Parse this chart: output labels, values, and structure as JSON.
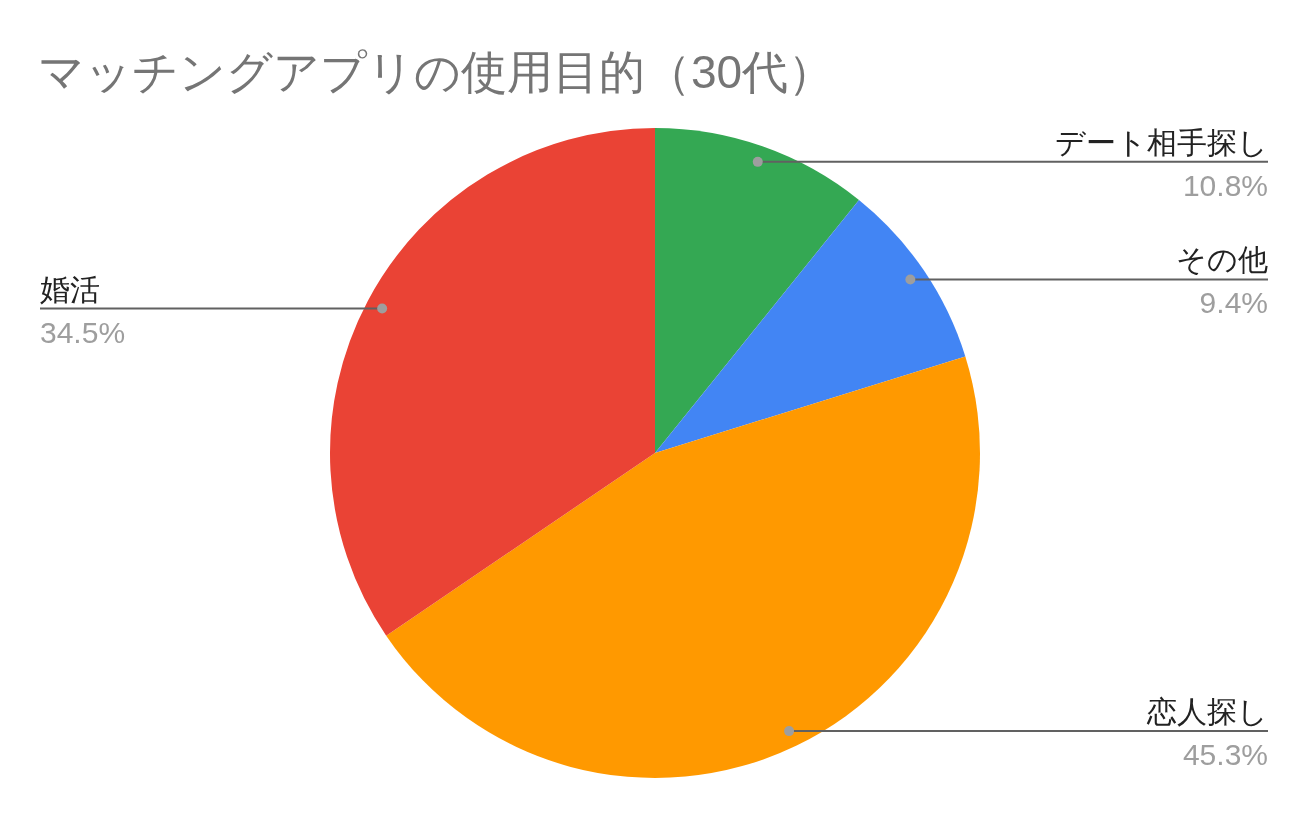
{
  "chart_data": {
    "type": "pie",
    "title": "マッチングアプリの使用目的（30代）",
    "categories": [
      "デート相手探し",
      "その他",
      "恋人探し",
      "婚活"
    ],
    "values": [
      10.8,
      9.4,
      45.3,
      34.5
    ],
    "colors": [
      "#34a853",
      "#4285f4",
      "#ff9900",
      "#ea4335"
    ],
    "value_labels": [
      "10.8%",
      "9.4%",
      "45.3%",
      "34.5%"
    ],
    "legend": false
  }
}
